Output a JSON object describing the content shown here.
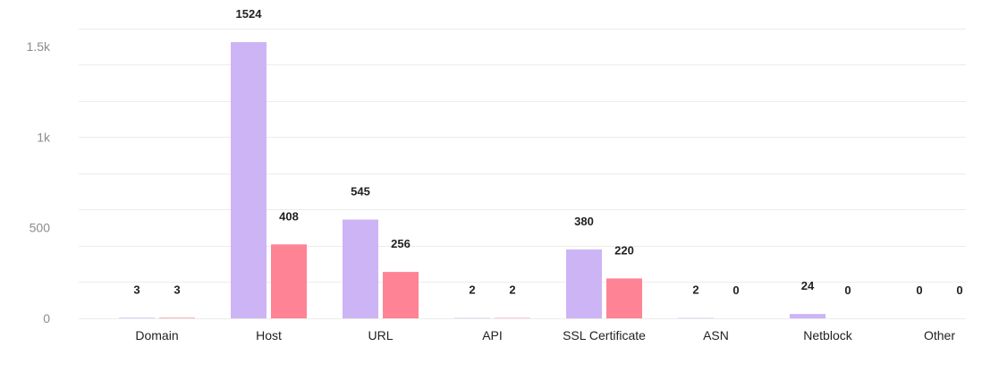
{
  "chart_data": {
    "type": "bar",
    "categories": [
      "Domain",
      "Host",
      "URL",
      "API",
      "SSL Certificate",
      "ASN",
      "Netblock",
      "Other"
    ],
    "series": [
      {
        "values": [
          3,
          1524,
          545,
          2,
          380,
          2,
          24,
          0
        ],
        "color": "#cdb4f5"
      },
      {
        "values": [
          3,
          408,
          256,
          2,
          220,
          0,
          0,
          0
        ],
        "color": "#fe8394"
      }
    ],
    "ylim": [
      0,
      1500
    ],
    "yticks": [
      {
        "value": 0,
        "label": "0"
      },
      {
        "value": 500,
        "label": "500"
      },
      {
        "value": 1000,
        "label": "1k"
      },
      {
        "value": 1500,
        "label": "1.5k"
      }
    ],
    "minor_grid_step": 200,
    "grid": true,
    "data_labels": true,
    "title": "",
    "xlabel": "",
    "ylabel": ""
  }
}
